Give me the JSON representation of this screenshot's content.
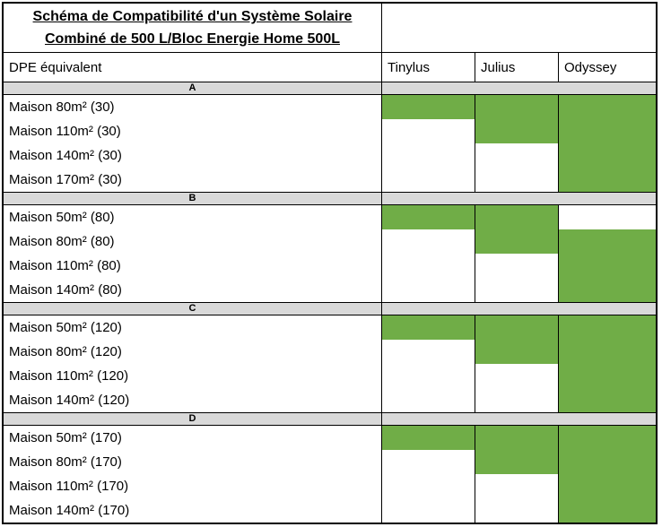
{
  "table": {
    "title_line1": "Schéma de Compatibilité d'un Système Solaire",
    "title_line2": "Combiné de 500 L/Bloc Energie Home 500L",
    "header": {
      "dpe": "DPE équivalent",
      "products": [
        "Tinylus",
        "Julius",
        "Odyssey"
      ]
    },
    "sections": [
      {
        "label": "A",
        "rows": [
          {
            "label": "Maison 80m² (30)",
            "compat": [
              true,
              true,
              true
            ]
          },
          {
            "label": "Maison 110m² (30)",
            "compat": [
              false,
              true,
              true
            ]
          },
          {
            "label": "Maison 140m² (30)",
            "compat": [
              false,
              false,
              true
            ]
          },
          {
            "label": "Maison 170m² (30)",
            "compat": [
              false,
              false,
              true
            ]
          }
        ]
      },
      {
        "label": "B",
        "rows": [
          {
            "label": "Maison 50m² (80)",
            "compat": [
              true,
              true,
              false
            ]
          },
          {
            "label": "Maison 80m² (80)",
            "compat": [
              false,
              true,
              true
            ]
          },
          {
            "label": "Maison 110m² (80)",
            "compat": [
              false,
              false,
              true
            ]
          },
          {
            "label": "Maison 140m² (80)",
            "compat": [
              false,
              false,
              true
            ]
          }
        ]
      },
      {
        "label": "C",
        "rows": [
          {
            "label": "Maison 50m² (120)",
            "compat": [
              true,
              true,
              true
            ]
          },
          {
            "label": "Maison 80m² (120)",
            "compat": [
              false,
              true,
              true
            ]
          },
          {
            "label": "Maison 110m² (120)",
            "compat": [
              false,
              false,
              true
            ]
          },
          {
            "label": "Maison 140m² (120)",
            "compat": [
              false,
              false,
              true
            ]
          }
        ]
      },
      {
        "label": "D",
        "rows": [
          {
            "label": "Maison 50m² (170)",
            "compat": [
              true,
              true,
              true
            ]
          },
          {
            "label": "Maison 80m² (170)",
            "compat": [
              false,
              true,
              true
            ]
          },
          {
            "label": "Maison 110m² (170)",
            "compat": [
              false,
              false,
              true
            ]
          },
          {
            "label": "Maison 140m² (170)",
            "compat": [
              false,
              false,
              true
            ]
          }
        ]
      }
    ],
    "colors": {
      "compatible": "#70AD47",
      "section_band": "#D9D9D9",
      "border": "#000000"
    }
  }
}
